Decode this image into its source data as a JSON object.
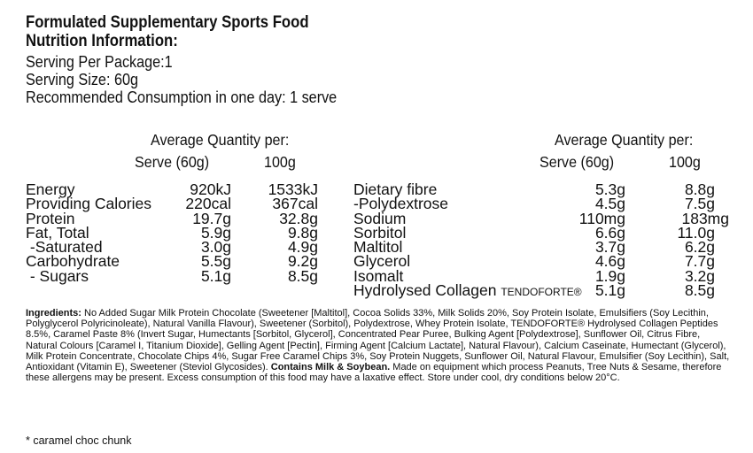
{
  "heading": {
    "line1": "Formulated Supplementary Sports Food",
    "line2": "Nutrition Information:"
  },
  "serving": {
    "per_package": "Serving Per Package:1",
    "size": "Serving Size: 60g",
    "recommended": "Recommended Consumption in one day: 1 serve"
  },
  "left_table": {
    "header_avg": "Average Quantity per:",
    "col_serve": "Serve (60g)",
    "col_100g": "100g",
    "rows": [
      {
        "label": "Energy",
        "serve": "920kJ",
        "per100": "1533kJ"
      },
      {
        "label": "Providing Calories",
        "serve": "220cal",
        "per100": "367cal"
      },
      {
        "label": "Protein",
        "serve": "19.7g",
        "per100": "32.8g"
      },
      {
        "label": "Fat, Total",
        "serve": "5.9g",
        "per100": "9.8g"
      },
      {
        "label": " -Saturated",
        "serve": "3.0g",
        "per100": "4.9g"
      },
      {
        "label": "Carbohydrate",
        "serve": "5.5g",
        "per100": "9.2g"
      },
      {
        "label": " - Sugars",
        "serve": "5.1g",
        "per100": "8.5g"
      }
    ]
  },
  "right_table": {
    "header_avg": "Average Quantity per:",
    "col_serve": "Serve (60g)",
    "col_100g": "100g",
    "rows": [
      {
        "label": "Dietary fibre",
        "serve": "5.3g",
        "per100": "8.8g"
      },
      {
        "label": "-Polydextrose",
        "serve": "4.5g",
        "per100": "7.5g"
      },
      {
        "label": "Sodium",
        "serve": "110mg",
        "per100": "183mg"
      },
      {
        "label": "Sorbitol",
        "serve": "6.6g",
        "per100": "11.0g"
      },
      {
        "label": "Maltitol",
        "serve": "3.7g",
        "per100": "6.2g"
      },
      {
        "label": "Glycerol",
        "serve": "4.6g",
        "per100": "7.7g"
      },
      {
        "label": "Isomalt",
        "serve": "1.9g",
        "per100": "3.2g"
      },
      {
        "label": "Hydrolysed Collagen ",
        "brand": "TENDOFORTE®",
        "serve": "5.1g",
        "per100": "8.5g"
      }
    ]
  },
  "ingredients": {
    "label": "Ingredients:",
    "text": " No Added Sugar Milk Protein Chocolate (Sweetener [Maltitol], Cocoa Solids 33%, Milk Solids 20%, Soy Protein Isolate, Emulsifiers (Soy Lecithin, Polyglycerol Polyricinoleate), Natural Vanilla Flavour), Sweetener (Sorbitol), Polydextrose, Whey Protein Isolate, TENDOFORTE® Hydrolysed Collagen Peptides 8.5%, Caramel Paste 8% (Invert Sugar, Humectants [Sorbitol, Glycerol], Concentrated Pear Puree, Bulking Agent [Polydextrose], Sunflower Oil, Citrus Fibre, Natural Colours [Caramel I, Titanium Dioxide], Gelling Agent [Pectin], Firming Agent [Calcium Lactate], Natural Flavour), Calcium Caseinate, Humectant (Glycerol), Milk Protein Concentrate, Chocolate Chips 4%, Sugar Free Caramel Chips 3%, Soy Protein Nuggets, Sunflower Oil, Natural Flavour, Emulsifier (Soy Lecithin), Salt, Antioxidant (Vitamin E), Sweetener (Steviol Glycosides). ",
    "contains": "Contains Milk & Soybean.",
    "after": " Made on equipment which process Peanuts, Tree Nuts & Sesame, therefore these allergens may be present. Excess consumption of this food may have a laxative effect. Store under cool, dry conditions below 20°C."
  },
  "footnote": "* caramel choc chunk"
}
